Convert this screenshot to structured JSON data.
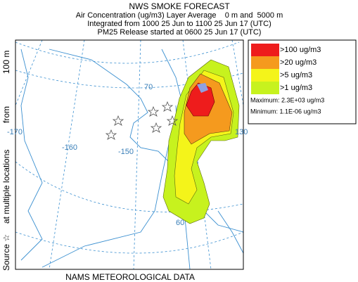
{
  "header": {
    "title": "NWS SMOKE FORECAST",
    "lines": [
      "Air Concentration (ug/m3) Layer Average    0 m and  5000 m",
      "Integrated from 1000 25 Jun to 1100 25 Jun 17 (UTC)",
      "PM25 Release started at 0600 25 Jun 17 (UTC)"
    ]
  },
  "side_label": [
    "Source ☆",
    "at multiple locations",
    "from",
    "100 m"
  ],
  "map_labels": [
    "70",
    "-170",
    "-160",
    "-150",
    "130",
    "60"
  ],
  "legend": {
    "items": [
      {
        "label": ">100 ug/m3",
        "color": "#ee1c1c"
      },
      {
        "label": ">20 ug/m3",
        "color": "#f59a1e"
      },
      {
        "label": ">5 ug/m3",
        "color": "#f4f41a"
      },
      {
        "label": ">1 ug/m3",
        "color": "#c7f21e"
      }
    ],
    "maximum": "Maximum: 2.3E+03 ug/m3",
    "minimum": "Minimum: 1.1E-06 ug/m3"
  },
  "footer": "NAMS METEOROLOGICAL DATA"
}
